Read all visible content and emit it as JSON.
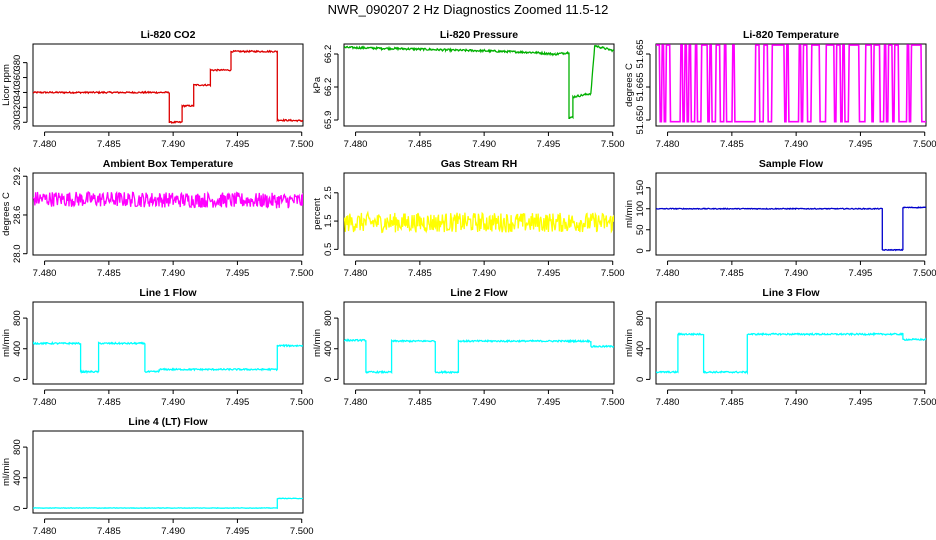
{
  "figure": {
    "title": "NWR_090207  2 Hz Diagnostics Zoomed 11.5-12"
  },
  "chart_data": [
    {
      "type": "line",
      "title": "Li-820 CO2",
      "ylabel": "Licor ppm",
      "color": "#dd0000",
      "x_ticks": [
        "7.480",
        "7.485",
        "7.490",
        "7.495",
        "7.500"
      ],
      "xlim": [
        7.4791,
        7.5001
      ],
      "y_ticks": [
        "300",
        "320",
        "340",
        "360",
        "380"
      ],
      "ylim": [
        295,
        405
      ],
      "segments": [
        [
          7.4791,
          340
        ],
        [
          7.4897,
          340
        ],
        [
          7.4897,
          300
        ],
        [
          7.4907,
          300
        ],
        [
          7.4907,
          322
        ],
        [
          7.4916,
          322
        ],
        [
          7.4916,
          350
        ],
        [
          7.4929,
          350
        ],
        [
          7.4929,
          370
        ],
        [
          7.4945,
          370
        ],
        [
          7.4945,
          395
        ],
        [
          7.4981,
          395
        ],
        [
          7.4981,
          303
        ],
        [
          7.5001,
          302
        ]
      ],
      "noise": 1
    },
    {
      "type": "line",
      "title": "Li-820 Pressure",
      "ylabel": "kPa",
      "color": "#00b000",
      "x_ticks": [
        "7.480",
        "7.485",
        "7.490",
        "7.495",
        "7.500"
      ],
      "xlim": [
        7.4791,
        7.5001
      ],
      "y_ticks": [
        "65.9",
        "66.2",
        "66.2"
      ],
      "ylim": [
        65.85,
        66.33
      ],
      "segments": [
        [
          7.4791,
          66.31
        ],
        [
          7.482,
          66.305
        ],
        [
          7.485,
          66.3
        ],
        [
          7.487,
          66.295
        ],
        [
          7.49,
          66.29
        ],
        [
          7.492,
          66.285
        ],
        [
          7.494,
          66.28
        ],
        [
          7.4955,
          66.27
        ],
        [
          7.4966,
          66.28
        ],
        [
          7.4966,
          65.9
        ],
        [
          7.4969,
          65.9
        ],
        [
          7.4969,
          66.02
        ],
        [
          7.4983,
          66.04
        ],
        [
          7.4986,
          66.32
        ],
        [
          7.5001,
          66.29
        ]
      ],
      "noise": 0.006
    },
    {
      "type": "line",
      "title": "Li-820 Temperature",
      "ylabel": "degrees C",
      "color": "#ff00ff",
      "x_ticks": [
        "7.480",
        "7.485",
        "7.490",
        "7.495",
        "7.500"
      ],
      "xlim": [
        7.4791,
        7.5001
      ],
      "y_ticks": [
        "51.650",
        "51.665",
        "51.665"
      ],
      "ylim": [
        51.6485,
        51.6715
      ],
      "segments": [],
      "toggle": [
        51.6497,
        51.6712
      ]
    },
    {
      "type": "line",
      "title": "Ambient Box Temperature",
      "ylabel": "degrees C",
      "color": "#ff00ff",
      "x_ticks": [
        "7.480",
        "7.485",
        "7.490",
        "7.495",
        "7.500"
      ],
      "xlim": [
        7.4791,
        7.5001
      ],
      "y_ticks": [
        "28.0",
        "28.6",
        "29.2"
      ],
      "ylim": [
        27.98,
        29.25
      ],
      "segments": [
        [
          7.4791,
          28.85
        ],
        [
          7.5001,
          28.82
        ]
      ],
      "noise": 0.12
    },
    {
      "type": "line",
      "title": "Gas Stream RH",
      "ylabel": "percent",
      "color": "#ffff00",
      "x_ticks": [
        "7.480",
        "7.485",
        "7.490",
        "7.495",
        "7.500"
      ],
      "xlim": [
        7.4791,
        7.5001
      ],
      "y_ticks": [
        "0.5",
        "1.5",
        "2.5"
      ],
      "ylim": [
        0.3,
        3.2
      ],
      "segments": [
        [
          7.4791,
          1.45
        ],
        [
          7.5001,
          1.45
        ]
      ],
      "noise": 0.35
    },
    {
      "type": "line",
      "title": "Sample Flow",
      "ylabel": "ml/min",
      "color": "#0000cc",
      "x_ticks": [
        "7.480",
        "7.485",
        "7.490",
        "7.495",
        "7.500"
      ],
      "xlim": [
        7.4791,
        7.5001
      ],
      "y_ticks": [
        "0",
        "50",
        "100",
        "150"
      ],
      "ylim": [
        -10,
        185
      ],
      "segments": [
        [
          7.4791,
          100
        ],
        [
          7.4967,
          100
        ],
        [
          7.4967,
          2
        ],
        [
          7.4983,
          2
        ],
        [
          7.4983,
          103
        ],
        [
          7.5001,
          103
        ]
      ],
      "noise": 1
    },
    {
      "type": "line",
      "title": "Line 1 Flow",
      "ylabel": "ml/min",
      "color": "#00ffff",
      "x_ticks": [
        "7.480",
        "7.485",
        "7.490",
        "7.495",
        "7.500"
      ],
      "xlim": [
        7.4791,
        7.5001
      ],
      "y_ticks": [
        "0",
        "400",
        "800"
      ],
      "ylim": [
        -60,
        1010
      ],
      "segments": [
        [
          7.4791,
          470
        ],
        [
          7.4828,
          470
        ],
        [
          7.4828,
          100
        ],
        [
          7.4842,
          100
        ],
        [
          7.4842,
          470
        ],
        [
          7.4878,
          470
        ],
        [
          7.4878,
          100
        ],
        [
          7.4889,
          100
        ],
        [
          7.4889,
          130
        ],
        [
          7.4981,
          130
        ],
        [
          7.4981,
          440
        ],
        [
          7.5001,
          440
        ]
      ],
      "noise": 10
    },
    {
      "type": "line",
      "title": "Line 2 Flow",
      "ylabel": "ml/min",
      "color": "#00ffff",
      "x_ticks": [
        "7.480",
        "7.485",
        "7.490",
        "7.495",
        "7.500"
      ],
      "xlim": [
        7.4791,
        7.5001
      ],
      "y_ticks": [
        "0",
        "400",
        "800"
      ],
      "ylim": [
        -60,
        1010
      ],
      "segments": [
        [
          7.4791,
          510
        ],
        [
          7.4808,
          510
        ],
        [
          7.4808,
          95
        ],
        [
          7.4828,
          95
        ],
        [
          7.4828,
          500
        ],
        [
          7.4862,
          500
        ],
        [
          7.4862,
          95
        ],
        [
          7.488,
          95
        ],
        [
          7.488,
          500
        ],
        [
          7.4983,
          500
        ],
        [
          7.4983,
          430
        ],
        [
          7.5001,
          430
        ]
      ],
      "noise": 10
    },
    {
      "type": "line",
      "title": "Line 3 Flow",
      "ylabel": "ml/min",
      "color": "#00ffff",
      "x_ticks": [
        "7.480",
        "7.485",
        "7.490",
        "7.495",
        "7.500"
      ],
      "xlim": [
        7.4791,
        7.5001
      ],
      "y_ticks": [
        "0",
        "400",
        "800"
      ],
      "ylim": [
        -60,
        1010
      ],
      "segments": [
        [
          7.4791,
          95
        ],
        [
          7.4808,
          95
        ],
        [
          7.4808,
          590
        ],
        [
          7.4828,
          590
        ],
        [
          7.4828,
          95
        ],
        [
          7.4862,
          95
        ],
        [
          7.4862,
          590
        ],
        [
          7.4983,
          590
        ],
        [
          7.4983,
          520
        ],
        [
          7.5001,
          520
        ]
      ],
      "noise": 10
    },
    {
      "type": "line",
      "title": "Line 4 (LT) Flow",
      "ylabel": "ml/min",
      "color": "#00ffff",
      "x_ticks": [
        "7.480",
        "7.485",
        "7.490",
        "7.495",
        "7.500"
      ],
      "xlim": [
        7.4791,
        7.5001
      ],
      "y_ticks": [
        "0",
        "400",
        "800"
      ],
      "ylim": [
        -60,
        1010
      ],
      "segments": [
        [
          7.4791,
          5
        ],
        [
          7.4981,
          5
        ],
        [
          7.4981,
          130
        ],
        [
          7.5001,
          130
        ]
      ],
      "noise": 3
    }
  ]
}
